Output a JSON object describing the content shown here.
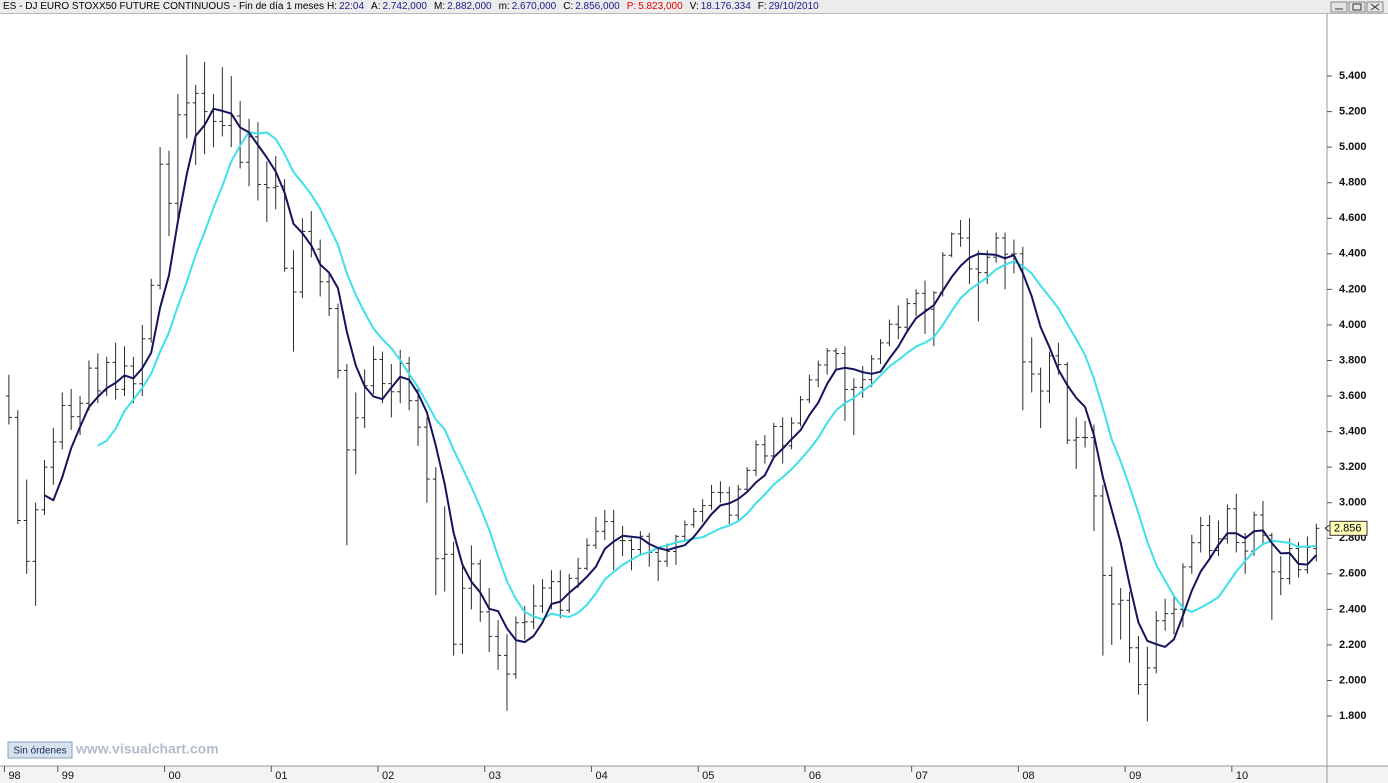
{
  "header": {
    "title": "ES - DJ EURO STOXX50 FUTURE CONTINUOUS - Fin de día 1 meses",
    "fields": [
      {
        "label": "H:",
        "value": "22:04",
        "color": "#1a1a8c"
      },
      {
        "label": "A:",
        "value": "2.742,000",
        "color": "#1a1a8c"
      },
      {
        "label": "M:",
        "value": "2.882,000",
        "color": "#1a1a8c"
      },
      {
        "label": "m:",
        "value": "2.670,000",
        "color": "#1a1a8c"
      },
      {
        "label": "C:",
        "value": "2.856,000",
        "color": "#1a1a8c"
      },
      {
        "label": "P:",
        "value": "5.823,000",
        "color": "#e00000",
        "label_color": "#e00000"
      },
      {
        "label": "V:",
        "value": "18.176.334",
        "color": "#1a1a8c"
      },
      {
        "label": "F:",
        "value": "29/10/2010",
        "color": "#1a1a8c"
      }
    ]
  },
  "footer": {
    "button": "Sin órdenes",
    "watermark": "www.visualchart.com"
  },
  "chart_data": {
    "type": "ohlc",
    "color": "#2a2a2a",
    "xlim": [
      -1,
      148.2
    ],
    "ylim": [
      1519,
      5749
    ],
    "xticks": [
      {
        "value": -0.5,
        "label": "98"
      },
      {
        "value": 5.5,
        "label": "99"
      },
      {
        "value": 17.5,
        "label": "00"
      },
      {
        "value": 29.5,
        "label": "01"
      },
      {
        "value": 41.5,
        "label": "02"
      },
      {
        "value": 53.5,
        "label": "03"
      },
      {
        "value": 65.5,
        "label": "04"
      },
      {
        "value": 77.5,
        "label": "05"
      },
      {
        "value": 89.5,
        "label": "06"
      },
      {
        "value": 101.5,
        "label": "07"
      },
      {
        "value": 113.5,
        "label": "08"
      },
      {
        "value": 125.5,
        "label": "09"
      },
      {
        "value": 137.5,
        "label": "10"
      }
    ],
    "yticks": [
      {
        "value": 1800,
        "label": "1.800"
      },
      {
        "value": 2000,
        "label": "2.000"
      },
      {
        "value": 2200,
        "label": "2.200"
      },
      {
        "value": 2400,
        "label": "2.400"
      },
      {
        "value": 2600,
        "label": "2.600"
      },
      {
        "value": 2800,
        "label": "2.800"
      },
      {
        "value": 3000,
        "label": "3.000"
      },
      {
        "value": 3200,
        "label": "3.200"
      },
      {
        "value": 3400,
        "label": "3.400"
      },
      {
        "value": 3600,
        "label": "3.600"
      },
      {
        "value": 3800,
        "label": "3.800"
      },
      {
        "value": 4000,
        "label": "4.000"
      },
      {
        "value": 4200,
        "label": "4.200"
      },
      {
        "value": 4400,
        "label": "4.400"
      },
      {
        "value": 4600,
        "label": "4.600"
      },
      {
        "value": 4800,
        "label": "4.800"
      },
      {
        "value": 5000,
        "label": "5.000"
      },
      {
        "value": 5200,
        "label": "5.200"
      },
      {
        "value": 5400,
        "label": "5.400"
      }
    ],
    "last_price_label": "2.856",
    "bars": {
      "open": [
        3600,
        3480,
        2900,
        2670,
        2960,
        3200,
        3342,
        3547,
        3484,
        3559,
        3757,
        3629,
        3789,
        3638,
        3769,
        3669,
        3922,
        4223,
        4904,
        4684,
        5182,
        5249,
        5303,
        5200,
        5145,
        5122,
        5175,
        4915,
        5058,
        4790,
        4772,
        4780,
        4319,
        4185,
        4526,
        4426,
        4243,
        4092,
        3744,
        3297,
        3478,
        3658,
        3806,
        3670,
        3624,
        3784,
        3574,
        3425,
        3133,
        2685,
        2710,
        2204,
        2519,
        2656,
        2386,
        2248,
        2141,
        2036,
        2325,
        2330,
        2419,
        2520,
        2556,
        2395,
        2575,
        2631,
        2761,
        2839,
        2894,
        2787,
        2787,
        2737,
        2811,
        2720,
        2671,
        2726,
        2811,
        2876,
        2951,
        2984,
        3058,
        3056,
        2930,
        3076,
        3182,
        3326,
        3263,
        3429,
        3320,
        3448,
        3579,
        3691,
        3775,
        3854,
        3839,
        3637,
        3649,
        3692,
        3809,
        3899,
        4004,
        3987,
        4120,
        4178,
        4088,
        4181,
        4392,
        4512,
        4489,
        4315,
        4294,
        4381,
        4489,
        4398,
        4400,
        3792,
        3724,
        3628,
        3826,
        3777,
        3352,
        3367,
        3366,
        3038,
        2591,
        2430,
        2451,
        2184,
        1977,
        2071,
        2336,
        2376,
        2401,
        2639,
        2775,
        2872,
        2731,
        2797,
        2966,
        2776,
        2728,
        2931,
        2817,
        2611,
        2573,
        2742,
        2623,
        2742
      ],
      "high": [
        3720,
        3520,
        3130,
        3000,
        3240,
        3420,
        3620,
        3640,
        3600,
        3800,
        3840,
        3820,
        3900,
        3880,
        3820,
        4000,
        4260,
        5000,
        4980,
        5300,
        5520,
        5350,
        5480,
        5300,
        5450,
        5400,
        5260,
        5160,
        5140,
        4920,
        4950,
        4820,
        4420,
        4600,
        4640,
        4480,
        4300,
        4120,
        3780,
        3620,
        3750,
        3880,
        3850,
        3780,
        3860,
        3820,
        3650,
        3480,
        3200,
        2980,
        2780,
        2640,
        2760,
        2680,
        2520,
        2340,
        2260,
        2360,
        2420,
        2540,
        2570,
        2620,
        2620,
        2600,
        2690,
        2800,
        2920,
        2960,
        2960,
        2870,
        2800,
        2840,
        2830,
        2740,
        2770,
        2820,
        2900,
        2970,
        3020,
        3100,
        3120,
        3090,
        3100,
        3200,
        3350,
        3380,
        3450,
        3480,
        3480,
        3600,
        3720,
        3800,
        3870,
        3870,
        3880,
        3700,
        3770,
        3830,
        3920,
        4030,
        4110,
        4150,
        4200,
        4250,
        4190,
        4410,
        4520,
        4590,
        4600,
        4420,
        4420,
        4520,
        4520,
        4480,
        4440,
        3930,
        3760,
        3850,
        3900,
        3790,
        3480,
        3460,
        3440,
        3100,
        2640,
        2520,
        2500,
        2250,
        2190,
        2390,
        2460,
        2480,
        2660,
        2820,
        2920,
        2930,
        2900,
        2990,
        3050,
        2830,
        2950,
        3010,
        2830,
        2700,
        2800,
        2780,
        2810,
        2882
      ],
      "low": [
        3440,
        2880,
        2600,
        2420,
        2930,
        3100,
        3300,
        3410,
        3380,
        3520,
        3560,
        3600,
        3580,
        3600,
        3560,
        3600,
        3900,
        4200,
        4500,
        4580,
        5050,
        4900,
        4960,
        5000,
        5060,
        5000,
        4880,
        4780,
        4700,
        4580,
        4650,
        4300,
        3850,
        4150,
        4380,
        4160,
        4050,
        3700,
        2760,
        3160,
        3420,
        3610,
        3560,
        3480,
        3560,
        3520,
        3320,
        3000,
        2480,
        2500,
        2140,
        2150,
        2400,
        2330,
        2160,
        2060,
        1830,
        2010,
        2230,
        2290,
        2380,
        2400,
        2350,
        2380,
        2520,
        2620,
        2740,
        2790,
        2620,
        2700,
        2620,
        2700,
        2640,
        2560,
        2640,
        2650,
        2780,
        2860,
        2890,
        2960,
        3000,
        2880,
        2900,
        3060,
        3150,
        3220,
        3250,
        3220,
        3300,
        3430,
        3560,
        3650,
        3720,
        3750,
        3460,
        3380,
        3590,
        3650,
        3780,
        3880,
        3920,
        3960,
        4050,
        3950,
        3880,
        4160,
        4380,
        4440,
        4230,
        4020,
        4230,
        4350,
        4200,
        4290,
        3520,
        3620,
        3420,
        3560,
        3720,
        3330,
        3190,
        3310,
        2840,
        2140,
        2200,
        2230,
        2100,
        1920,
        1770,
        2040,
        2280,
        2260,
        2300,
        2600,
        2720,
        2680,
        2700,
        2770,
        2720,
        2600,
        2700,
        2760,
        2340,
        2480,
        2540,
        2580,
        2600,
        2670
      ],
      "close": [
        3480,
        2900,
        2670,
        2960,
        3200,
        3342,
        3547,
        3484,
        3559,
        3757,
        3629,
        3789,
        3638,
        3769,
        3669,
        3922,
        4223,
        4904,
        4684,
        5182,
        5249,
        5303,
        5200,
        5145,
        5122,
        5175,
        4915,
        5058,
        4790,
        4772,
        4780,
        4319,
        4185,
        4526,
        4426,
        4243,
        4092,
        3744,
        3297,
        3478,
        3658,
        3806,
        3670,
        3624,
        3784,
        3574,
        3425,
        3133,
        2685,
        2710,
        2204,
        2519,
        2656,
        2386,
        2248,
        2141,
        2036,
        2325,
        2330,
        2419,
        2520,
        2556,
        2395,
        2575,
        2631,
        2761,
        2839,
        2894,
        2787,
        2787,
        2737,
        2811,
        2720,
        2671,
        2726,
        2811,
        2876,
        2951,
        2984,
        3058,
        3056,
        2930,
        3076,
        3182,
        3326,
        3263,
        3429,
        3320,
        3448,
        3579,
        3691,
        3775,
        3854,
        3839,
        3637,
        3649,
        3692,
        3809,
        3899,
        4004,
        3987,
        4120,
        4178,
        4088,
        4181,
        4392,
        4512,
        4489,
        4315,
        4294,
        4381,
        4489,
        4398,
        4400,
        3792,
        3724,
        3628,
        3826,
        3777,
        3352,
        3367,
        3366,
        3038,
        2591,
        2430,
        2451,
        2184,
        1977,
        2071,
        2336,
        2376,
        2401,
        2639,
        2775,
        2872,
        2731,
        2797,
        2966,
        2776,
        2728,
        2931,
        2817,
        2611,
        2573,
        2742,
        2623,
        2748,
        2856
      ]
    },
    "ma_lines": [
      {
        "color": "#3ee0ea",
        "values": [
          null,
          null,
          null,
          null,
          null,
          null,
          null,
          null,
          null,
          null,
          3321,
          3349,
          3416,
          3516,
          3580,
          3646,
          3726,
          3849,
          3958,
          4106,
          4242,
          4394,
          4522,
          4659,
          4782,
          4919,
          5009,
          5085,
          5075,
          5083,
          5046,
          4962,
          4860,
          4799,
          4733,
          4654,
          4555,
          4449,
          4289,
          4169,
          4068,
          3979,
          3920,
          3869,
          3802,
          3725,
          3650,
          3563,
          3467,
          3413,
          3298,
          3194,
          3089,
          2973,
          2848,
          2698,
          2558,
          2458,
          2385,
          2361,
          2344,
          2376,
          2365,
          2357,
          2380,
          2426,
          2490,
          2568,
          2610,
          2651,
          2680,
          2707,
          2722,
          2747,
          2760,
          2777,
          2787,
          2797,
          2806,
          2830,
          2855,
          2872,
          2896,
          2938,
          2998,
          3047,
          3103,
          3143,
          3188,
          3242,
          3300,
          3365,
          3449,
          3519,
          3560,
          3589,
          3628,
          3663,
          3716,
          3766,
          3803,
          3842,
          3879,
          3900,
          3931,
          4000,
          4078,
          4151,
          4197,
          4233,
          4267,
          4313,
          4338,
          4358,
          4331,
          4290,
          4220,
          4158,
          4093,
          4006,
          3921,
          3829,
          3697,
          3533,
          3354,
          3232,
          3092,
          2942,
          2782,
          2651,
          2562,
          2475,
          2409,
          2385,
          2410,
          2438,
          2469,
          2540,
          2613,
          2672,
          2727,
          2767,
          2786,
          2780,
          2774,
          2751,
          2753,
          2758
        ]
      },
      {
        "color": "#14145e",
        "values": [
          null,
          null,
          null,
          null,
          3042,
          3014,
          3144,
          3307,
          3426,
          3538,
          3595,
          3644,
          3674,
          3716,
          3699,
          3757,
          3844,
          4097,
          4280,
          4583,
          4848,
          5064,
          5124,
          5216,
          5204,
          5189,
          5111,
          5083,
          5012,
          4942,
          4863,
          4744,
          4569,
          4516,
          4447,
          4340,
          4294,
          4206,
          3960,
          3771,
          3654,
          3597,
          3582,
          3647,
          3708,
          3692,
          3615,
          3508,
          3320,
          3105,
          2831,
          2650,
          2555,
          2495,
          2403,
          2390,
          2293,
          2227,
          2216,
          2250,
          2326,
          2430,
          2444,
          2493,
          2535,
          2584,
          2640,
          2740,
          2782,
          2814,
          2809,
          2803,
          2768,
          2745,
          2733,
          2748,
          2761,
          2807,
          2870,
          2936,
          2985,
          2996,
          3021,
          3060,
          3114,
          3155,
          3255,
          3304,
          3357,
          3408,
          3493,
          3563,
          3669,
          3748,
          3759,
          3751,
          3734,
          3725,
          3737,
          3811,
          3878,
          3964,
          4038,
          4075,
          4111,
          4192,
          4270,
          4332,
          4378,
          4400,
          4398,
          4394,
          4375,
          4392,
          4292,
          4161,
          3988,
          3874,
          3749,
          3661,
          3590,
          3538,
          3380,
          3143,
          2958,
          2775,
          2539,
          2327,
          2223,
          2204,
          2189,
          2232,
          2365,
          2505,
          2613,
          2684,
          2763,
          2828,
          2828,
          2800,
          2840,
          2844,
          2773,
          2715,
          2717,
          2656,
          2652,
          2706
        ]
      }
    ]
  }
}
